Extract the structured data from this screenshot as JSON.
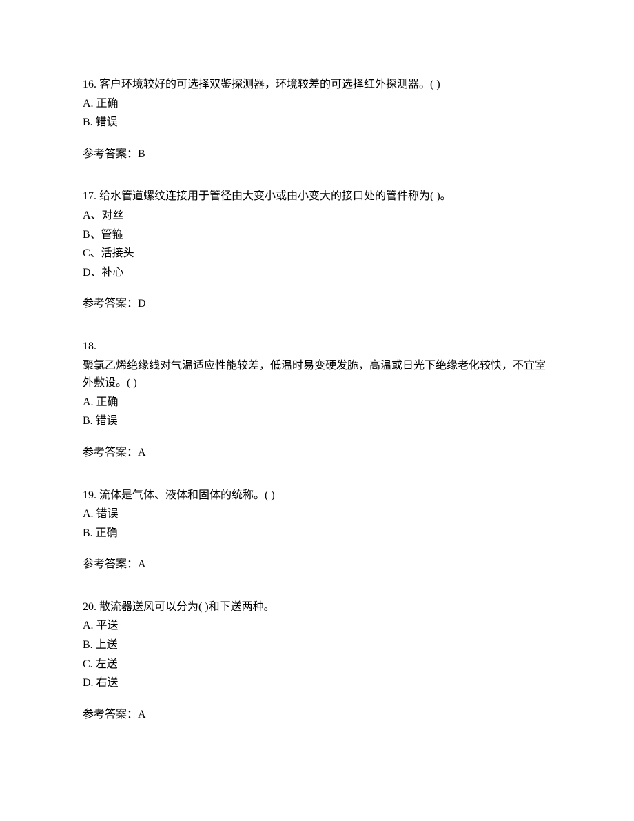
{
  "questions": [
    {
      "number": "16.",
      "text": "客户环境较好的可选择双鉴探测器，环境较差的可选择红外探测器。(   )",
      "options": [
        "A. 正确",
        "B. 错误"
      ],
      "answer_label": "参考答案：",
      "answer_value": "B"
    },
    {
      "number": "17.",
      "text": "给水管道螺纹连接用于管径由大变小或由小变大的接口处的管件称为(   )。",
      "options": [
        "A、对丝",
        "B、管箍",
        "C、活接头",
        "D、补心"
      ],
      "answer_label": "参考答案：",
      "answer_value": "D"
    },
    {
      "number": "18.",
      "text": "",
      "continuation": "聚氯乙烯绝缘线对气温适应性能较差，低温时易变硬发脆，高温或日光下绝缘老化较快，不宜室外敷设。(   )",
      "options": [
        "A. 正确",
        "B. 错误"
      ],
      "answer_label": "参考答案：",
      "answer_value": "A"
    },
    {
      "number": "19.",
      "text": "流体是气体、液体和固体的统称。(   )",
      "options": [
        "A. 错误",
        "B. 正确"
      ],
      "answer_label": "参考答案：",
      "answer_value": "A"
    },
    {
      "number": "20.",
      "text": "散流器送风可以分为(   )和下送两种。",
      "options": [
        "A. 平送",
        "B. 上送",
        "C. 左送",
        "D. 右送"
      ],
      "answer_label": "参考答案：",
      "answer_value": "A"
    }
  ]
}
